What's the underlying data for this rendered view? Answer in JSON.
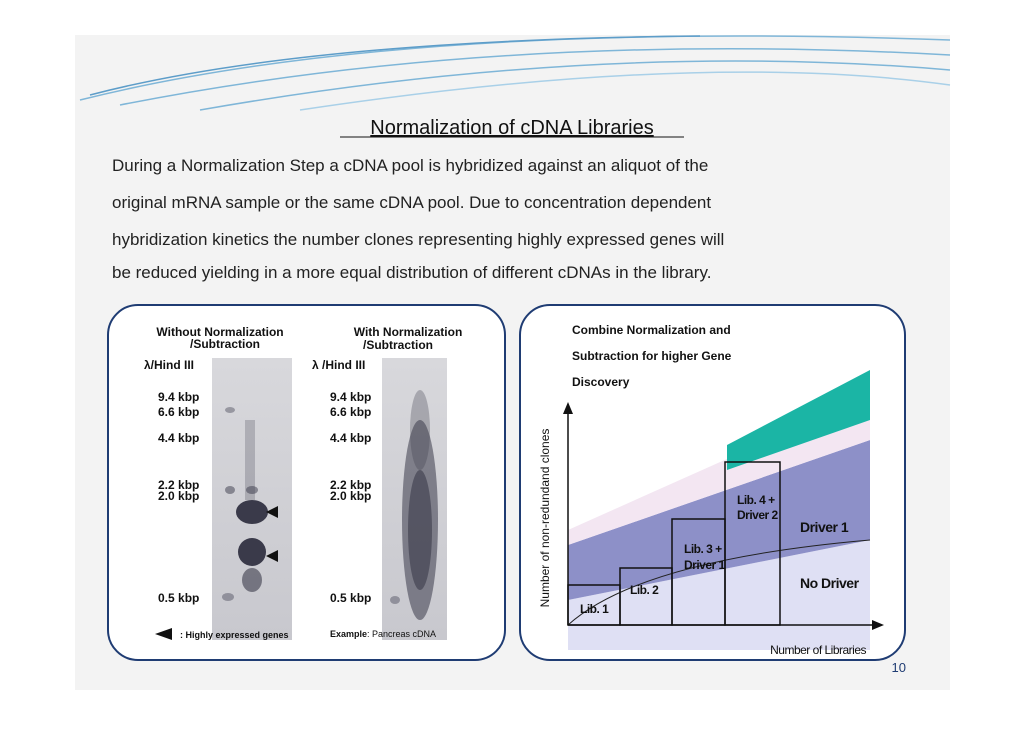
{
  "title": "Normalization of cDNA Libraries",
  "paragraph": [
    "During a Normalization Step a cDNA pool is hybridized against an aliquot of the",
    "original mRNA sample or the same cDNA pool. Due to concentration dependent",
    "hybridization kinetics the number clones representing highly expressed genes will",
    "be reduced yielding in a more equal distribution of different cDNAs in the library."
  ],
  "left_panel": {
    "without": {
      "heading": [
        "Without Normalization",
        "/Subtraction"
      ],
      "ladder": "λ/Hind III",
      "markers": [
        "9.4 kbp",
        "6.6 kbp",
        "4.4 kbp",
        "2.2 kbp",
        "2.0 kbp",
        "0.5 kbp"
      ]
    },
    "with": {
      "heading": [
        "With Normalization",
        "/Subtraction"
      ],
      "ladder": "λ /Hind III",
      "markers": [
        "9.4 kbp",
        "6.6 kbp",
        "4.4 kbp",
        "2.2 kbp",
        "2.0 kbp",
        "0.5 kbp"
      ]
    },
    "legend": ": Highly expressed genes",
    "example_label": "Example",
    "example_text": ": Pancreas cDNA"
  },
  "right_panel": {
    "title": [
      "Combine Normalization and",
      "Subtraction for higher Gene",
      "Discovery"
    ],
    "y_axis_label": "Number of non-redundand clones",
    "x_axis_label": "Number of Libraries",
    "labels": [
      "Lib. 1",
      "Lib. 2",
      "Lib. 3 +",
      "Driver 1",
      "Lib. 4 +",
      "Driver 2",
      "Driver 1",
      "No Driver"
    ]
  },
  "page_number": "10"
}
